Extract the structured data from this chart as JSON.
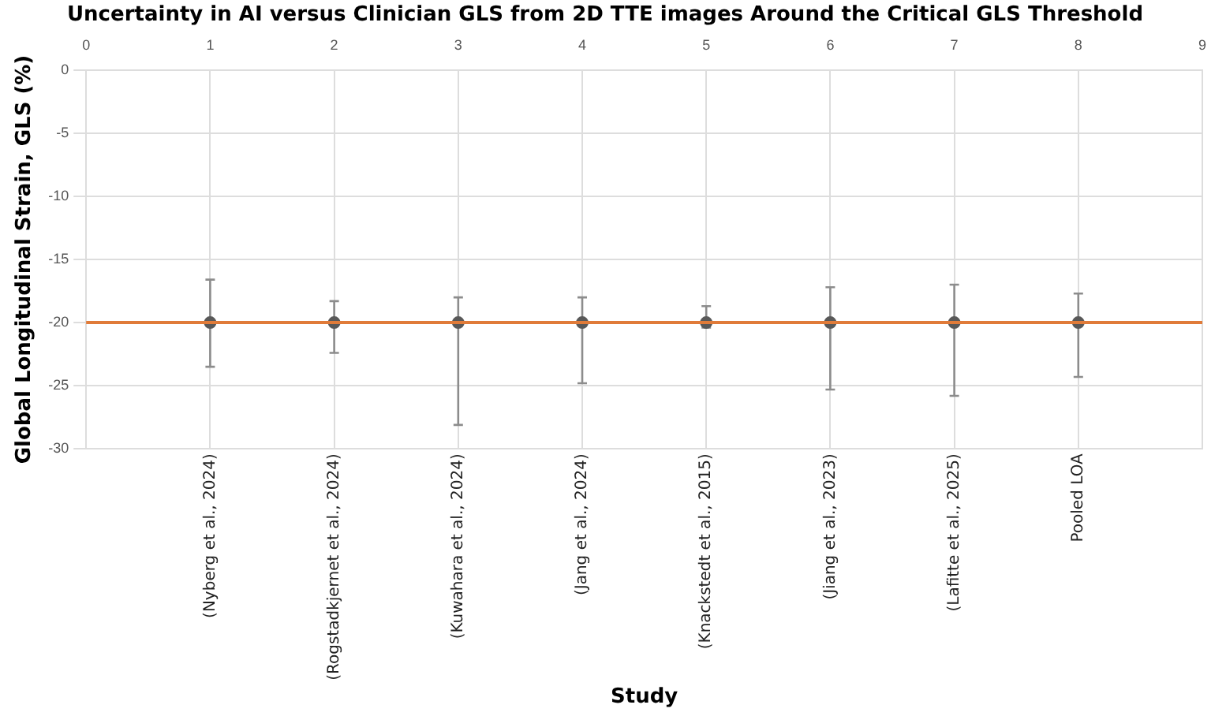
{
  "chart_data": {
    "type": "scatter",
    "title": "Uncertainty in AI versus Clinician GLS from 2D TTE images Around the Critical GLS Threshold",
    "xlabel": "Study",
    "ylabel": "Global Longitudinal Strain, GLS (%)",
    "categories": [
      null,
      "(Nyberg et al., 2024)",
      "(Rogstadkjernet et al., 2024)",
      "(Kuwahara et al., 2024)",
      "(Jang et al., 2024)",
      "(Knackstedt et al., 2015)",
      "(Jiang et al., 2023)",
      "(Lafitte et al., 2025)",
      "Pooled LOA",
      null
    ],
    "series": [
      {
        "color": "#595959",
        "values": [
          null,
          -20,
          -20,
          -20,
          -20,
          -20,
          -20,
          -20,
          -20,
          null
        ],
        "errors": [
          null,
          [
            -23.5,
            -16.6
          ],
          [
            -22.4,
            -18.3
          ],
          [
            -28.1,
            -18.0
          ],
          [
            -24.8,
            -18.0
          ],
          [
            -20.4,
            -18.7
          ],
          [
            -25.3,
            -17.2
          ],
          [
            -25.8,
            -17.0
          ],
          [
            -24.3,
            -17.7
          ],
          null
        ]
      }
    ],
    "x2lim": [
      0,
      9
    ],
    "x2ticks": [
      0,
      1,
      2,
      3,
      4,
      5,
      6,
      7,
      8,
      9
    ],
    "ylim": [
      -30,
      0
    ],
    "yticks": [
      0,
      -5,
      -10,
      -15,
      -20,
      -25,
      -30
    ],
    "ref_lines": [
      {
        "axis": "y",
        "value": -20,
        "color": "#e07b39"
      }
    ],
    "grid": true,
    "legend": false,
    "marker": "circle"
  }
}
